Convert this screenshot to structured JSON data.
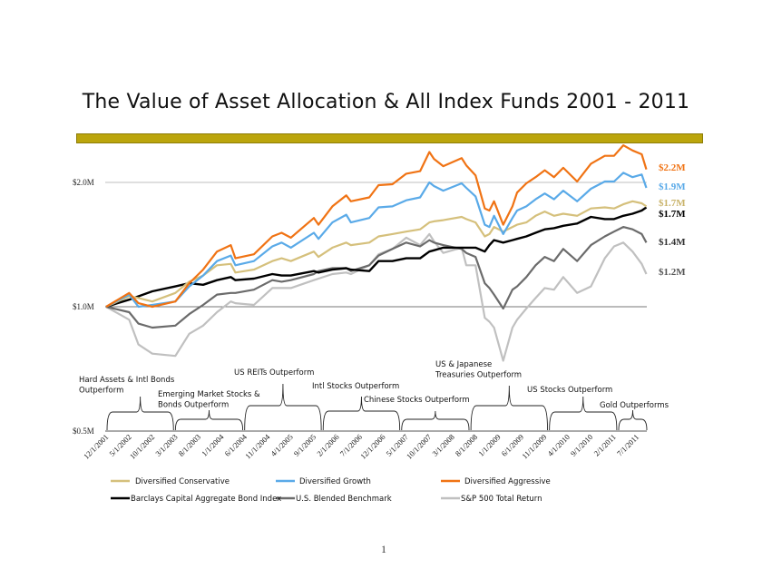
{
  "page_number": "1",
  "chart_data": {
    "type": "line",
    "title": "The Value of Asset Allocation & All Index Funds 2001 - 2011",
    "y_scale": "log",
    "ylim": [
      0.5,
      2.5
    ],
    "y_ticks": [
      {
        "value": 0.5,
        "label": "$0.5M"
      },
      {
        "value": 1.0,
        "label": "$1.0M"
      },
      {
        "value": 2.0,
        "label": "$2.0M"
      }
    ],
    "x_tick_labels": [
      "12/1/2001",
      "5/1/2002",
      "10/1/2002",
      "3/1/2003",
      "8/1/2003",
      "1/1/2004",
      "6/1/2004",
      "11/1/2004",
      "4/1/2005",
      "9/1/2005",
      "2/1/2006",
      "7/1/2006",
      "12/1/2006",
      "5/1/2007",
      "10/1/2007",
      "3/1/2008",
      "8/1/2008",
      "1/1/2009",
      "6/1/2009",
      "11/1/2009",
      "4/1/2010",
      "9/1/2010",
      "2/1/2011",
      "7/1/2011"
    ],
    "x": [
      "2001-12",
      "2002-05",
      "2002-07",
      "2002-10",
      "2003-03",
      "2003-06",
      "2003-09",
      "2003-12",
      "2004-03",
      "2004-04",
      "2004-08",
      "2004-12",
      "2005-02",
      "2005-04",
      "2005-09",
      "2005-10",
      "2006-01",
      "2006-04",
      "2006-05",
      "2006-09",
      "2006-11",
      "2007-02",
      "2007-05",
      "2007-08",
      "2007-10",
      "2007-11",
      "2008-01",
      "2008-05",
      "2008-06",
      "2008-08",
      "2008-10",
      "2008-11",
      "2008-12",
      "2009-02",
      "2009-04",
      "2009-05",
      "2009-07",
      "2009-09",
      "2009-11",
      "2010-01",
      "2010-03",
      "2010-06",
      "2010-09",
      "2010-12",
      "2011-02",
      "2011-04",
      "2011-06",
      "2011-08",
      "2011-09"
    ],
    "series": [
      {
        "name": "S&P 500 Total Return",
        "color": "#c0c0c0",
        "end_label": "$1.2M",
        "values": [
          1.0,
          0.93,
          0.81,
          0.77,
          0.76,
          0.86,
          0.9,
          0.97,
          1.03,
          1.02,
          1.01,
          1.11,
          1.11,
          1.11,
          1.16,
          1.17,
          1.2,
          1.21,
          1.2,
          1.26,
          1.34,
          1.38,
          1.47,
          1.41,
          1.5,
          1.44,
          1.35,
          1.39,
          1.26,
          1.26,
          0.94,
          0.92,
          0.89,
          0.74,
          0.89,
          0.93,
          0.99,
          1.05,
          1.11,
          1.1,
          1.18,
          1.08,
          1.12,
          1.31,
          1.4,
          1.43,
          1.36,
          1.27,
          1.2
        ]
      },
      {
        "name": "U.S. Blended Benchmark",
        "color": "#6b6b6b",
        "end_label": "$1.4M",
        "values": [
          1.0,
          0.97,
          0.91,
          0.89,
          0.9,
          0.96,
          1.01,
          1.07,
          1.08,
          1.08,
          1.1,
          1.16,
          1.15,
          1.16,
          1.2,
          1.22,
          1.24,
          1.24,
          1.22,
          1.26,
          1.33,
          1.38,
          1.43,
          1.4,
          1.45,
          1.43,
          1.41,
          1.38,
          1.35,
          1.32,
          1.14,
          1.11,
          1.07,
          0.99,
          1.1,
          1.12,
          1.18,
          1.26,
          1.32,
          1.29,
          1.38,
          1.29,
          1.41,
          1.48,
          1.52,
          1.56,
          1.54,
          1.5,
          1.43
        ]
      },
      {
        "name": "Barclays Capital Aggregate Bond Index",
        "color": "#000000",
        "end_label": "$1.7M",
        "values": [
          1.0,
          1.04,
          1.06,
          1.09,
          1.12,
          1.14,
          1.13,
          1.16,
          1.18,
          1.16,
          1.17,
          1.2,
          1.19,
          1.19,
          1.22,
          1.21,
          1.23,
          1.24,
          1.23,
          1.22,
          1.29,
          1.29,
          1.31,
          1.31,
          1.36,
          1.37,
          1.39,
          1.39,
          1.39,
          1.39,
          1.36,
          1.41,
          1.45,
          1.43,
          1.45,
          1.46,
          1.48,
          1.51,
          1.54,
          1.55,
          1.57,
          1.59,
          1.65,
          1.63,
          1.63,
          1.66,
          1.68,
          1.71,
          1.74
        ]
      },
      {
        "name": "Diversified Conservative",
        "color": "#d5c07c",
        "end_label": "$1.7M",
        "values": [
          1.0,
          1.06,
          1.05,
          1.03,
          1.08,
          1.15,
          1.19,
          1.26,
          1.27,
          1.21,
          1.23,
          1.29,
          1.31,
          1.29,
          1.36,
          1.32,
          1.39,
          1.43,
          1.41,
          1.43,
          1.48,
          1.5,
          1.52,
          1.54,
          1.6,
          1.61,
          1.62,
          1.65,
          1.63,
          1.6,
          1.48,
          1.5,
          1.56,
          1.52,
          1.56,
          1.58,
          1.6,
          1.66,
          1.7,
          1.66,
          1.68,
          1.66,
          1.73,
          1.74,
          1.73,
          1.77,
          1.8,
          1.78,
          1.75
        ]
      },
      {
        "name": "Diversified Growth",
        "color": "#5aaae8",
        "end_label": "$1.9M",
        "values": [
          1.0,
          1.07,
          1.0,
          1.01,
          1.03,
          1.12,
          1.19,
          1.29,
          1.33,
          1.26,
          1.29,
          1.4,
          1.43,
          1.39,
          1.51,
          1.46,
          1.6,
          1.67,
          1.6,
          1.64,
          1.74,
          1.75,
          1.81,
          1.84,
          2.0,
          1.96,
          1.91,
          1.99,
          1.94,
          1.85,
          1.58,
          1.56,
          1.66,
          1.5,
          1.64,
          1.71,
          1.75,
          1.82,
          1.88,
          1.82,
          1.91,
          1.8,
          1.93,
          2.01,
          2.01,
          2.11,
          2.06,
          2.09,
          1.94
        ]
      },
      {
        "name": "Diversified Aggressive",
        "color": "#f07314",
        "end_label": "$2.2M",
        "values": [
          1.0,
          1.08,
          1.02,
          1.0,
          1.03,
          1.14,
          1.23,
          1.36,
          1.41,
          1.31,
          1.34,
          1.48,
          1.51,
          1.47,
          1.64,
          1.58,
          1.75,
          1.86,
          1.8,
          1.84,
          1.97,
          1.98,
          2.1,
          2.13,
          2.37,
          2.28,
          2.19,
          2.29,
          2.2,
          2.08,
          1.73,
          1.71,
          1.8,
          1.58,
          1.75,
          1.89,
          1.99,
          2.06,
          2.14,
          2.06,
          2.17,
          2.01,
          2.22,
          2.32,
          2.32,
          2.46,
          2.39,
          2.34,
          2.15
        ]
      }
    ],
    "annotations": [
      {
        "lines": [
          "Hard Assets & Intl Bonds",
          "Outperform"
        ],
        "from": "2001-12",
        "to": "2003-02"
      },
      {
        "lines": [
          "Emerging Market Stocks &",
          "Bonds Outperform"
        ],
        "from": "2003-03",
        "to": "2004-05"
      },
      {
        "lines": [
          "US REITs Outperform"
        ],
        "from": "2004-06",
        "to": "2005-10"
      },
      {
        "lines": [
          "Intl Stocks Outperform"
        ],
        "from": "2005-11",
        "to": "2007-03"
      },
      {
        "lines": [
          "Chinese Stocks Outperform"
        ],
        "from": "2007-04",
        "to": "2008-06"
      },
      {
        "lines": [
          "US & Japanese",
          "Treasuries Outperform"
        ],
        "from": "2008-07",
        "to": "2009-11"
      },
      {
        "lines": [
          "US Stocks Outperform"
        ],
        "from": "2009-12",
        "to": "2011-02"
      },
      {
        "lines": [
          "Gold Outperforms"
        ],
        "from": "2011-03",
        "to": "2011-09"
      }
    ],
    "legend": {
      "placement": "bottom",
      "order": [
        "Diversified Conservative",
        "Diversified Growth",
        "Diversified Aggressive",
        "Barclays Capital Aggregate Bond Index",
        "U.S. Blended Benchmark",
        "S&P 500 Total Return"
      ]
    }
  }
}
